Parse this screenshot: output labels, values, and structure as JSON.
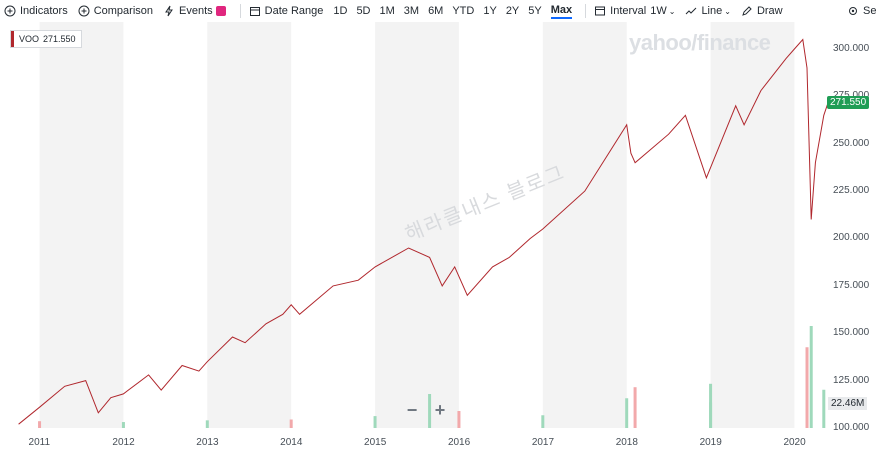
{
  "toolbar": {
    "indicators": "Indicators",
    "comparison": "Comparison",
    "events": "Events",
    "date_range": "Date Range",
    "ranges": [
      "1D",
      "5D",
      "1M",
      "3M",
      "6M",
      "YTD",
      "1Y",
      "2Y",
      "5Y",
      "Max"
    ],
    "active_range": "Max",
    "interval_label": "Interval",
    "interval_value": "1W",
    "line_label": "Line",
    "draw_label": "Draw",
    "settings_label": "Se"
  },
  "legend": {
    "symbol": "VOO",
    "value": "271.550"
  },
  "watermark": "yahoo/finance",
  "korean_watermark": "해라클내스 블로그",
  "zoom": {
    "minus": "−",
    "plus": "+"
  },
  "price_tag": "271.550",
  "volume_tag": "22.46M",
  "colors": {
    "line": "#b0272d",
    "price_tag": "#1f9d55",
    "volume_up": "#9fd9bb",
    "volume_down": "#f2a9ab",
    "band": "#f3f3f3"
  },
  "chart_data": {
    "type": "line",
    "series": [
      {
        "name": "VOO",
        "x": [
          2010.75,
          2011.0,
          2011.3,
          2011.55,
          2011.7,
          2011.85,
          2012.0,
          2012.3,
          2012.45,
          2012.7,
          2012.9,
          2013.0,
          2013.3,
          2013.45,
          2013.7,
          2013.9,
          2014.0,
          2014.1,
          2014.5,
          2014.8,
          2015.0,
          2015.4,
          2015.65,
          2015.8,
          2015.95,
          2016.1,
          2016.4,
          2016.6,
          2016.85,
          2017.0,
          2017.5,
          2018.0,
          2018.05,
          2018.1,
          2018.5,
          2018.7,
          2018.95,
          2019.3,
          2019.4,
          2019.6,
          2019.9,
          2020.0,
          2020.1,
          2020.15,
          2020.2,
          2020.25,
          2020.35,
          2020.4
        ],
        "values": [
          102,
          111,
          122,
          125,
          108,
          116,
          118,
          128,
          120,
          133,
          130,
          135,
          148,
          145,
          155,
          160,
          165,
          160,
          175,
          178,
          185,
          195,
          190,
          175,
          185,
          170,
          185,
          190,
          200,
          205,
          225,
          260,
          245,
          240,
          255,
          265,
          232,
          270,
          260,
          278,
          295,
          300,
          305,
          290,
          210,
          240,
          265,
          271.55
        ]
      }
    ],
    "volume_series": [
      {
        "x": 2011.0,
        "volume": 8
      },
      {
        "x": 2012.0,
        "volume": 7
      },
      {
        "x": 2013.0,
        "volume": 9
      },
      {
        "x": 2014.0,
        "volume": 10
      },
      {
        "x": 2015.0,
        "volume": 14
      },
      {
        "x": 2015.65,
        "volume": 40
      },
      {
        "x": 2016.0,
        "volume": 20
      },
      {
        "x": 2017.0,
        "volume": 15
      },
      {
        "x": 2018.0,
        "volume": 35
      },
      {
        "x": 2018.1,
        "volume": 48
      },
      {
        "x": 2019.0,
        "volume": 30
      },
      {
        "x": 2019.0,
        "volume": 52
      },
      {
        "x": 2020.15,
        "volume": 95
      },
      {
        "x": 2020.2,
        "volume": 120
      },
      {
        "x": 2020.35,
        "volume": 45
      }
    ],
    "x_ticks": [
      "2011",
      "2012",
      "2013",
      "2014",
      "2015",
      "2016",
      "2017",
      "2018",
      "2019",
      "2020"
    ],
    "y_ticks": [
      "300.000",
      "275.000",
      "250.000",
      "225.000",
      "200.000",
      "175.000",
      "150.000",
      "125.000",
      "100.000"
    ],
    "ylim": [
      100,
      310
    ],
    "xlim": [
      2010.6,
      2020.4
    ],
    "grid": "alternating-year-bands"
  }
}
